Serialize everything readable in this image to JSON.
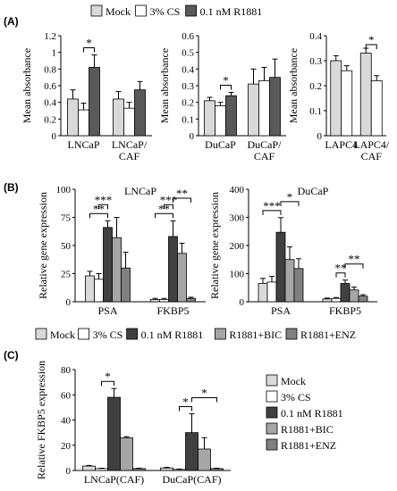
{
  "figure": {
    "panel_labels": [
      "(A)",
      "(B)",
      "(C)"
    ],
    "legend_A": {
      "items": [
        {
          "name": "Mock",
          "color": "#d9d9d9"
        },
        {
          "name": "3% CS",
          "color": "#ffffff"
        },
        {
          "name": "0.1 nM R1881",
          "color": "#595959"
        }
      ]
    },
    "legend_B": {
      "items": [
        {
          "name": "Mock",
          "color": "#d9d9d9"
        },
        {
          "name": "3% CS",
          "color": "#ffffff"
        },
        {
          "name": "0.1 nM R1881",
          "color": "#404040"
        },
        {
          "name": "R1881+BIC",
          "color": "#a6a6a6"
        },
        {
          "name": "R1881+ENZ",
          "color": "#808080"
        }
      ]
    },
    "legend_C": {
      "items": [
        {
          "name": "Mock",
          "color": "#d9d9d9"
        },
        {
          "name": "3% CS",
          "color": "#ffffff"
        },
        {
          "name": "0.1 nM R1881",
          "color": "#404040"
        },
        {
          "name": "R1881+BIC",
          "color": "#a6a6a6"
        },
        {
          "name": "R1881+ENZ",
          "color": "#808080"
        }
      ]
    }
  },
  "chart_data": [
    {
      "id": "A1",
      "type": "bar",
      "ylabel": "Mean absorbance",
      "ylim": [
        0,
        1.2
      ],
      "yticks": [
        0,
        0.2,
        0.4,
        0.6,
        0.8,
        1,
        1.2
      ],
      "ytick_labels": [
        "0",
        "0.2",
        "0.4",
        "0.6",
        "0.8",
        "1",
        "1.2"
      ],
      "categories": [
        [
          "LNCaP"
        ],
        [
          "LNCaP/",
          "CAF"
        ]
      ],
      "series": [
        {
          "name": "Mock",
          "values": [
            0.44,
            0.44
          ],
          "errors": [
            0.11,
            0.09
          ]
        },
        {
          "name": "3% CS",
          "values": [
            0.31,
            0.33
          ],
          "errors": [
            0.08,
            0.07
          ]
        },
        {
          "name": "0.1 nM R1881",
          "values": [
            0.82,
            0.55
          ],
          "errors": [
            0.15,
            0.1
          ]
        }
      ],
      "significance": [
        {
          "cat": 0,
          "from": 1,
          "to": 2,
          "label": "*"
        }
      ]
    },
    {
      "id": "A2",
      "type": "bar",
      "ylabel": "Mean absorbance",
      "ylim": [
        0,
        0.6
      ],
      "yticks": [
        0,
        0.1,
        0.2,
        0.3,
        0.4,
        0.5,
        0.6
      ],
      "ytick_labels": [
        "0",
        "0.1",
        "0.2",
        "0.3",
        "0.4",
        "0.5",
        "0.6"
      ],
      "categories": [
        [
          "DuCaP"
        ],
        [
          "DuCaP/",
          "CAF"
        ]
      ],
      "series": [
        {
          "name": "Mock",
          "values": [
            0.21,
            0.31
          ],
          "errors": [
            0.02,
            0.09
          ]
        },
        {
          "name": "3% CS",
          "values": [
            0.18,
            0.33
          ],
          "errors": [
            0.02,
            0.08
          ]
        },
        {
          "name": "0.1 nM R1881",
          "values": [
            0.24,
            0.35
          ],
          "errors": [
            0.02,
            0.11
          ]
        }
      ],
      "significance": [
        {
          "cat": 0,
          "from": 1,
          "to": 2,
          "label": "*"
        }
      ]
    },
    {
      "id": "A3",
      "type": "bar",
      "ylabel": "Mean absorbance",
      "ylim": [
        0,
        0.4
      ],
      "yticks": [
        0,
        0.1,
        0.2,
        0.3,
        0.4
      ],
      "ytick_labels": [
        "0",
        "0.1",
        "0.2",
        "0.3",
        "0.4"
      ],
      "categories": [
        [
          "LAPC4"
        ],
        [
          "LAPC4/",
          "CAF"
        ]
      ],
      "series": [
        {
          "name": "Mock",
          "values": [
            0.3,
            0.33
          ],
          "errors": [
            0.02,
            0.02
          ]
        },
        {
          "name": "3% CS",
          "values": [
            0.26,
            0.22
          ],
          "errors": [
            0.02,
            0.02
          ]
        }
      ],
      "significance": [
        {
          "cat": 1,
          "from": 0,
          "to": 1,
          "label": "*"
        }
      ]
    },
    {
      "id": "B1",
      "type": "bar",
      "title": "LNCaP",
      "ylabel": "Relative gene expression",
      "ylim": [
        0,
        100
      ],
      "yticks": [
        0,
        25,
        50,
        75,
        100
      ],
      "ytick_labels": [
        "0",
        "25",
        "50",
        "75",
        "100"
      ],
      "categories": [
        [
          "PSA"
        ],
        [
          "FKBP5"
        ]
      ],
      "series": [
        {
          "name": "Mock",
          "values": [
            23,
            2
          ],
          "errors": [
            4,
            1
          ]
        },
        {
          "name": "3% CS",
          "values": [
            20,
            2
          ],
          "errors": [
            5,
            1
          ]
        },
        {
          "name": "0.1 nM R1881",
          "values": [
            66,
            58
          ],
          "errors": [
            6,
            14
          ]
        },
        {
          "name": "R1881+BIC",
          "values": [
            57,
            43
          ],
          "errors": [
            18,
            9
          ]
        },
        {
          "name": "R1881+ENZ",
          "values": [
            30,
            3
          ],
          "errors": [
            14,
            1
          ]
        }
      ],
      "significance": [
        {
          "cat": 0,
          "from": 0,
          "to": 2,
          "label": "**"
        },
        {
          "cat": 0,
          "from": 1,
          "to": 2,
          "label": "***"
        },
        {
          "cat": 1,
          "from": 0,
          "to": 2,
          "label": "**"
        },
        {
          "cat": 1,
          "from": 1,
          "to": 2,
          "label": "***"
        },
        {
          "cat": 1,
          "from": 2,
          "to": 4,
          "label": "**"
        }
      ]
    },
    {
      "id": "B2",
      "type": "bar",
      "title": "DuCaP",
      "ylabel": "",
      "ylim": [
        0,
        400
      ],
      "yticks": [
        0,
        100,
        200,
        300,
        400
      ],
      "ytick_labels": [
        "0",
        "100",
        "200",
        "300",
        "400"
      ],
      "categories": [
        [
          "PSA"
        ],
        [
          "FKBP5"
        ]
      ],
      "series": [
        {
          "name": "Mock",
          "values": [
            65,
            10
          ],
          "errors": [
            18,
            3
          ]
        },
        {
          "name": "3% CS",
          "values": [
            70,
            12
          ],
          "errors": [
            20,
            3
          ]
        },
        {
          "name": "0.1 nM R1881",
          "values": [
            247,
            65
          ],
          "errors": [
            52,
            12
          ]
        },
        {
          "name": "R1881+BIC",
          "values": [
            150,
            42
          ],
          "errors": [
            45,
            10
          ]
        },
        {
          "name": "R1881+ENZ",
          "values": [
            118,
            20
          ],
          "errors": [
            35,
            5
          ]
        }
      ],
      "significance": [
        {
          "cat": 0,
          "from": 0,
          "to": 2,
          "label": "***"
        },
        {
          "cat": 0,
          "from": 2,
          "to": 4,
          "label": "*"
        },
        {
          "cat": 1,
          "from": 1,
          "to": 2,
          "label": "**"
        },
        {
          "cat": 1,
          "from": 2,
          "to": 4,
          "label": "**"
        }
      ]
    },
    {
      "id": "C1",
      "type": "bar",
      "ylabel": "Relative FKBP5 expression",
      "ylim": [
        0,
        80
      ],
      "yticks": [
        0,
        20,
        40,
        60,
        80
      ],
      "ytick_labels": [
        "0",
        "20",
        "40",
        "60",
        "80"
      ],
      "categories": [
        [
          "LNCaP(CAF)"
        ],
        [
          "DuCaP(CAF)"
        ]
      ],
      "series": [
        {
          "name": "Mock",
          "values": [
            3.5,
            2
          ],
          "errors": [
            0.5,
            0.5
          ]
        },
        {
          "name": "3% CS",
          "values": [
            1.5,
            0.8
          ],
          "errors": [
            0.3,
            0.3
          ]
        },
        {
          "name": "0.1 nM R1881",
          "values": [
            58,
            30
          ],
          "errors": [
            7,
            15
          ]
        },
        {
          "name": "R1881+BIC",
          "values": [
            26,
            17
          ],
          "errors": [
            0.8,
            9
          ]
        },
        {
          "name": "R1881+ENZ",
          "values": [
            1.5,
            1.5
          ],
          "errors": [
            0.3,
            0.3
          ]
        }
      ],
      "significance": [
        {
          "cat": 0,
          "from": 1,
          "to": 2,
          "label": "*"
        },
        {
          "cat": 1,
          "from": 1,
          "to": 2,
          "label": "*"
        },
        {
          "cat": 1,
          "from": 2,
          "to": 4,
          "label": "*"
        }
      ]
    }
  ]
}
